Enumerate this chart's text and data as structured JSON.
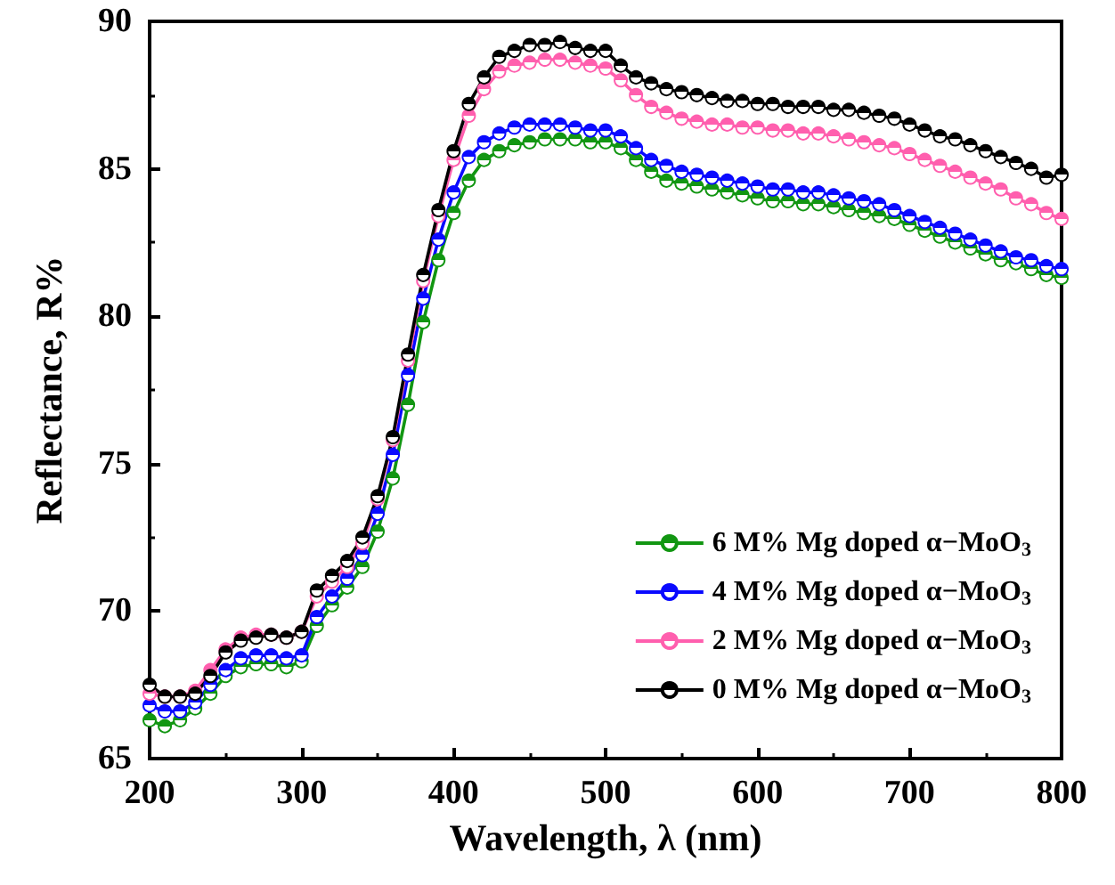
{
  "chart_data": {
    "type": "line",
    "xlabel": "Wavelength, λ (nm)",
    "ylabel": "Reflectance, R%",
    "x": [
      200,
      210,
      220,
      230,
      240,
      250,
      260,
      270,
      280,
      290,
      300,
      310,
      320,
      330,
      340,
      350,
      360,
      370,
      380,
      390,
      400,
      410,
      420,
      430,
      440,
      450,
      460,
      470,
      480,
      490,
      500,
      510,
      520,
      530,
      540,
      550,
      560,
      570,
      580,
      590,
      600,
      610,
      620,
      630,
      640,
      650,
      660,
      670,
      680,
      690,
      700,
      710,
      720,
      730,
      740,
      750,
      760,
      770,
      780,
      790,
      800
    ],
    "series": [
      {
        "name": "6 M% Mg doped α−MoO$_{3}$",
        "color": "#129612",
        "values": [
          66.3,
          66.1,
          66.3,
          66.7,
          67.2,
          67.8,
          68.1,
          68.2,
          68.2,
          68.1,
          68.3,
          69.5,
          70.2,
          70.8,
          71.5,
          72.7,
          74.5,
          77.0,
          79.8,
          81.9,
          83.5,
          84.6,
          85.3,
          85.6,
          85.8,
          85.9,
          86.0,
          86.0,
          86.0,
          85.9,
          85.9,
          85.7,
          85.3,
          84.9,
          84.6,
          84.5,
          84.4,
          84.3,
          84.2,
          84.1,
          84.0,
          83.9,
          83.9,
          83.8,
          83.8,
          83.7,
          83.6,
          83.5,
          83.4,
          83.3,
          83.1,
          82.9,
          82.7,
          82.5,
          82.3,
          82.1,
          81.9,
          81.8,
          81.6,
          81.4,
          81.3
        ]
      },
      {
        "name": "4 M% Mg doped α−MoO$_{3}$",
        "color": "#0a0aff",
        "values": [
          66.8,
          66.6,
          66.6,
          66.9,
          67.5,
          68.0,
          68.4,
          68.5,
          68.5,
          68.4,
          68.5,
          69.8,
          70.5,
          71.1,
          71.9,
          73.3,
          75.3,
          78.0,
          80.6,
          82.6,
          84.2,
          85.4,
          85.9,
          86.2,
          86.4,
          86.5,
          86.5,
          86.5,
          86.4,
          86.3,
          86.3,
          86.1,
          85.7,
          85.3,
          85.1,
          84.9,
          84.8,
          84.7,
          84.6,
          84.5,
          84.4,
          84.3,
          84.3,
          84.2,
          84.2,
          84.1,
          84.0,
          83.9,
          83.8,
          83.6,
          83.4,
          83.2,
          83.0,
          82.8,
          82.6,
          82.4,
          82.2,
          82.0,
          81.9,
          81.7,
          81.6
        ]
      },
      {
        "name": "2 M% Mg doped α−MoO$_{3}$",
        "color": "#ff5fae",
        "values": [
          67.2,
          67.1,
          67.1,
          67.3,
          68.0,
          68.7,
          69.1,
          69.2,
          69.2,
          69.1,
          69.3,
          70.5,
          71.0,
          71.5,
          72.3,
          73.8,
          75.8,
          78.5,
          81.2,
          83.4,
          85.3,
          86.8,
          87.7,
          88.3,
          88.5,
          88.6,
          88.7,
          88.7,
          88.6,
          88.5,
          88.4,
          88.0,
          87.5,
          87.1,
          86.9,
          86.7,
          86.6,
          86.5,
          86.5,
          86.4,
          86.4,
          86.3,
          86.3,
          86.2,
          86.2,
          86.1,
          86.0,
          85.9,
          85.8,
          85.7,
          85.5,
          85.3,
          85.1,
          84.9,
          84.7,
          84.5,
          84.3,
          84.0,
          83.8,
          83.5,
          83.3
        ]
      },
      {
        "name": "0 M% Mg doped α−MoO$_{3}$",
        "color": "#000000",
        "values": [
          67.5,
          67.1,
          67.1,
          67.2,
          67.8,
          68.6,
          69.0,
          69.1,
          69.2,
          69.1,
          69.3,
          70.7,
          71.2,
          71.7,
          72.5,
          73.9,
          75.9,
          78.7,
          81.4,
          83.6,
          85.6,
          87.2,
          88.1,
          88.8,
          89.0,
          89.2,
          89.2,
          89.3,
          89.1,
          89.0,
          89.0,
          88.5,
          88.1,
          87.9,
          87.7,
          87.6,
          87.5,
          87.4,
          87.3,
          87.3,
          87.2,
          87.2,
          87.1,
          87.1,
          87.1,
          87.0,
          87.0,
          86.9,
          86.8,
          86.7,
          86.5,
          86.3,
          86.1,
          86.0,
          85.8,
          85.6,
          85.4,
          85.2,
          85.0,
          84.7,
          84.8
        ]
      }
    ],
    "xlim": [
      200,
      800
    ],
    "xticks": [
      200,
      300,
      400,
      500,
      600,
      700,
      800
    ],
    "ylim": [
      65,
      90
    ],
    "yticks": [
      65,
      70,
      75,
      80,
      85,
      90
    ],
    "grid": false,
    "legend": "bottom right",
    "marker": "circle",
    "line_style": "solid"
  }
}
